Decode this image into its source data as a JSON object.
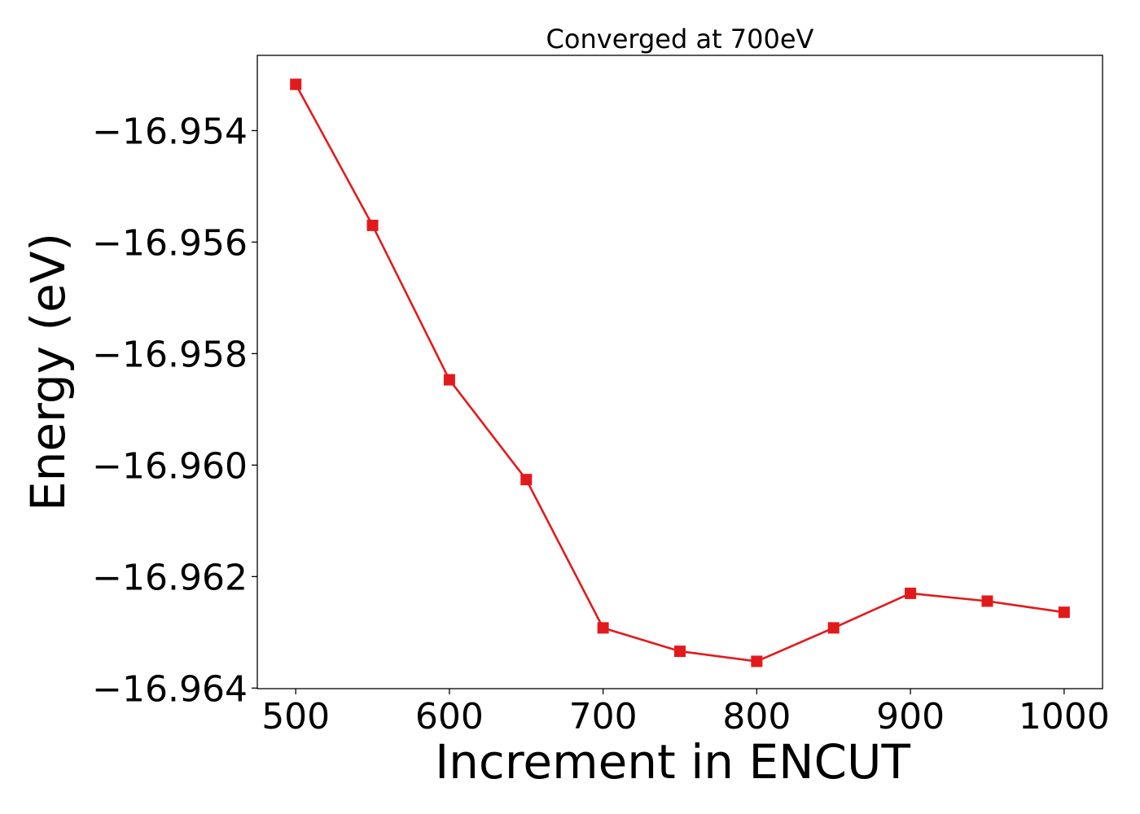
{
  "chart_data": {
    "type": "line",
    "title": "Converged at 700eV",
    "xlabel": "Increment in ENCUT",
    "ylabel": "Energy (eV)",
    "x": [
      500,
      550,
      600,
      650,
      700,
      750,
      800,
      850,
      900,
      950,
      1000
    ],
    "series": [
      {
        "values": [
          -16.95317,
          -16.9557,
          -16.95847,
          -16.96026,
          -16.96292,
          -16.96334,
          -16.96352,
          -16.96292,
          -16.9623,
          -16.96244,
          -16.96264
        ],
        "color": "#e31a1c",
        "marker": "square"
      }
    ],
    "xlim": [
      475,
      1025
    ],
    "ylim": [
      -16.96401,
      -16.95265
    ],
    "xticks": [
      500,
      600,
      700,
      800,
      900,
      1000
    ],
    "xtick_labels": [
      "500",
      "600",
      "700",
      "800",
      "900",
      "1000"
    ],
    "yticks": [
      -16.954,
      -16.956,
      -16.958,
      -16.96,
      -16.962,
      -16.964
    ],
    "ytick_labels": [
      "−16.954",
      "−16.956",
      "−16.958",
      "−16.960",
      "−16.962",
      "−16.964"
    ],
    "grid": false,
    "legend": false
  }
}
